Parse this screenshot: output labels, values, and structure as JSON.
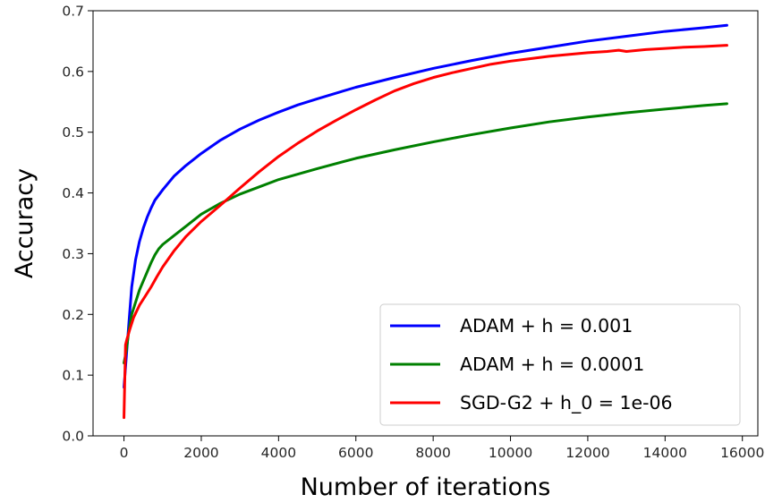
{
  "chart_data": {
    "type": "line",
    "title": "",
    "xlabel": "Number of iterations",
    "ylabel": "Accuracy",
    "xlim": [
      -800,
      16400
    ],
    "ylim": [
      0.0,
      0.7
    ],
    "xticks": [
      0,
      2000,
      4000,
      6000,
      8000,
      10000,
      12000,
      14000,
      16000
    ],
    "xtick_labels": [
      "0",
      "2000",
      "4000",
      "6000",
      "8000",
      "10000",
      "12000",
      "14000",
      "16000"
    ],
    "yticks": [
      0.0,
      0.1,
      0.2,
      0.3,
      0.4,
      0.5,
      0.6,
      0.7
    ],
    "ytick_labels": [
      "0.0",
      "0.1",
      "0.2",
      "0.3",
      "0.4",
      "0.5",
      "0.6",
      "0.7"
    ],
    "grid": false,
    "legend_position": "lower-right",
    "series": [
      {
        "name": "ADAM + h = 0.001",
        "color": "#0000ff",
        "x": [
          0,
          60,
          120,
          200,
          300,
          400,
          500,
          600,
          700,
          800,
          1000,
          1300,
          1600,
          2000,
          2500,
          3000,
          3500,
          4000,
          4500,
          5000,
          6000,
          7000,
          8000,
          9000,
          10000,
          11000,
          12000,
          13000,
          14000,
          15000,
          15600
        ],
        "y": [
          0.08,
          0.13,
          0.18,
          0.245,
          0.29,
          0.32,
          0.342,
          0.36,
          0.375,
          0.388,
          0.405,
          0.428,
          0.445,
          0.465,
          0.487,
          0.505,
          0.52,
          0.533,
          0.545,
          0.555,
          0.574,
          0.59,
          0.605,
          0.618,
          0.63,
          0.64,
          0.65,
          0.658,
          0.666,
          0.672,
          0.676
        ]
      },
      {
        "name": "ADAM + h = 0.0001",
        "color": "#008000",
        "x": [
          0,
          60,
          120,
          200,
          300,
          400,
          500,
          600,
          700,
          800,
          900,
          1000,
          1300,
          1600,
          2000,
          2500,
          3000,
          3500,
          4000,
          5000,
          6000,
          7000,
          8000,
          9000,
          10000,
          11000,
          12000,
          13000,
          14000,
          15000,
          15600
        ],
        "y": [
          0.12,
          0.14,
          0.17,
          0.2,
          0.22,
          0.24,
          0.255,
          0.27,
          0.285,
          0.298,
          0.308,
          0.315,
          0.33,
          0.345,
          0.365,
          0.383,
          0.398,
          0.41,
          0.422,
          0.44,
          0.457,
          0.471,
          0.484,
          0.496,
          0.507,
          0.517,
          0.525,
          0.532,
          0.538,
          0.544,
          0.547
        ]
      },
      {
        "name": "SGD-G2 + h_0 = 1e-06",
        "color": "#ff0000",
        "x": [
          0,
          40,
          80,
          150,
          250,
          400,
          550,
          700,
          850,
          1000,
          1300,
          1600,
          2000,
          2500,
          3000,
          3500,
          4000,
          4500,
          5000,
          5500,
          6000,
          6500,
          7000,
          7500,
          8000,
          8500,
          9000,
          9500,
          10000,
          10500,
          11000,
          11500,
          12000,
          12500,
          12800,
          13000,
          13500,
          14000,
          14500,
          15000,
          15600
        ],
        "y": [
          0.03,
          0.15,
          0.16,
          0.175,
          0.195,
          0.215,
          0.23,
          0.245,
          0.262,
          0.278,
          0.305,
          0.328,
          0.353,
          0.38,
          0.408,
          0.435,
          0.46,
          0.482,
          0.502,
          0.52,
          0.537,
          0.553,
          0.568,
          0.58,
          0.59,
          0.598,
          0.605,
          0.612,
          0.617,
          0.621,
          0.625,
          0.628,
          0.631,
          0.633,
          0.635,
          0.633,
          0.636,
          0.638,
          0.64,
          0.641,
          0.643
        ]
      }
    ]
  }
}
